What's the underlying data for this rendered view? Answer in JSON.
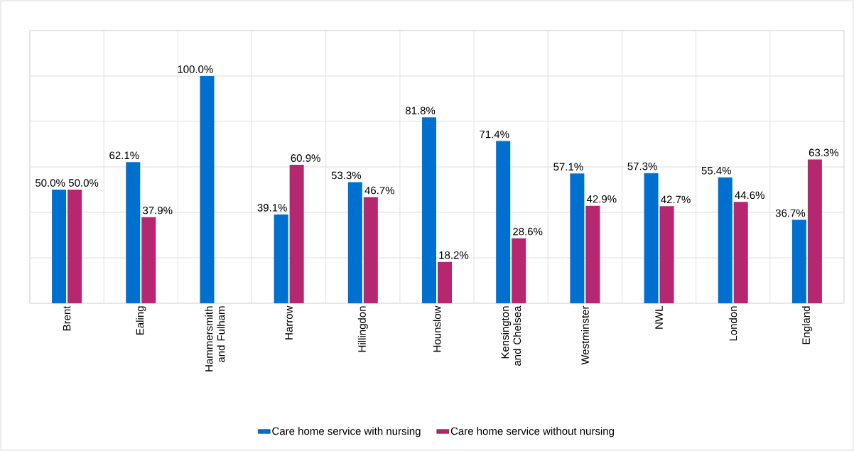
{
  "chart_data": {
    "type": "bar",
    "categories": [
      "Brent",
      "Ealing",
      "Hammersmith and Fulham",
      "Harrow",
      "Hillingdon",
      "Hounslow",
      "Kensington and Chelsea",
      "Westminster",
      "NWL",
      "London",
      "England"
    ],
    "series": [
      {
        "name": "Care home service with nursing",
        "color": "#0070d0",
        "values": [
          50.0,
          62.1,
          100.0,
          39.1,
          53.3,
          81.8,
          71.4,
          57.1,
          57.3,
          55.4,
          36.7
        ],
        "value_labels": [
          "50.0%",
          "62.1%",
          "100.0%",
          "39.1%",
          "53.3%",
          "81.8%",
          "71.4%",
          "57.1%",
          "57.3%",
          "55.4%",
          "36.7%"
        ]
      },
      {
        "name": "Care home service without nursing",
        "color": "#b5276e",
        "values": [
          50.0,
          37.9,
          null,
          60.9,
          46.7,
          18.2,
          28.6,
          42.9,
          42.7,
          44.6,
          63.3
        ],
        "value_labels": [
          "50.0%",
          "37.9%",
          null,
          "60.9%",
          "46.7%",
          "18.2%",
          "28.6%",
          "42.9%",
          "42.7%",
          "44.6%",
          "63.3%"
        ]
      }
    ],
    "ylim": [
      0,
      120
    ],
    "yticks": [
      {
        "value": 0,
        "label": null
      },
      {
        "value": 20,
        "label": null
      },
      {
        "value": 40,
        "label": null
      },
      {
        "value": 60,
        "label": null
      },
      {
        "value": 80,
        "label": null
      },
      {
        "value": 100,
        "label": null
      },
      {
        "value": 120,
        "label": null
      }
    ],
    "tick_labels": "x",
    "grid": true,
    "legend": "bottom"
  }
}
